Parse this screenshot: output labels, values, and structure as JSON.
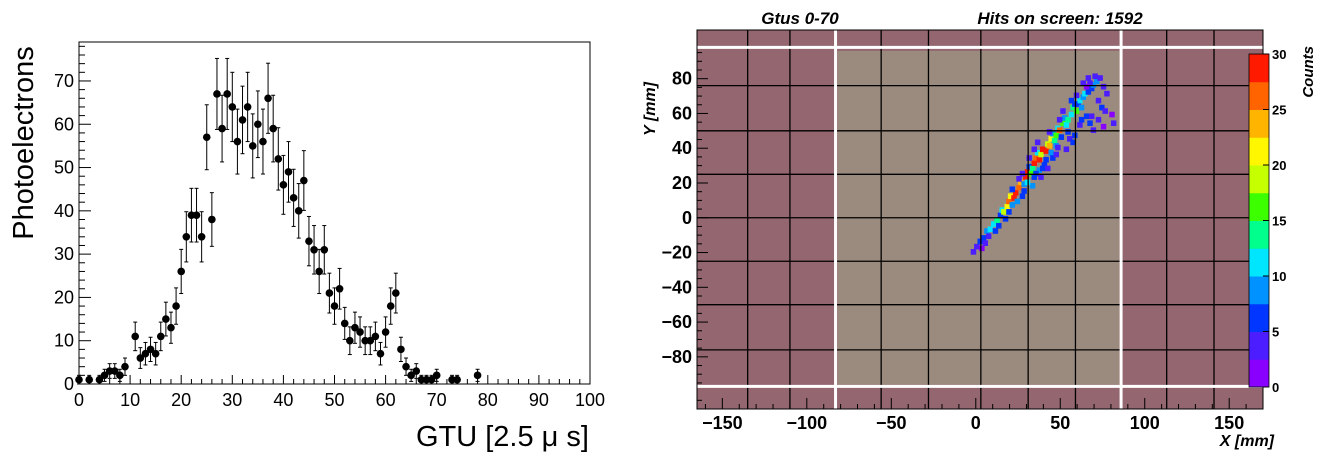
{
  "left_panel": {
    "chart_data": {
      "type": "scatter",
      "xlabel": "GTU [2.5 μ s]",
      "ylabel": "Photoelectrons",
      "xlim": [
        0,
        100
      ],
      "ylim": [
        0,
        79
      ],
      "xticks": [
        "0",
        "10",
        "20",
        "30",
        "40",
        "50",
        "60",
        "70",
        "80",
        "90",
        "100"
      ],
      "yticks": [
        "0",
        "10",
        "20",
        "30",
        "40",
        "50",
        "60",
        "70"
      ],
      "grid": false,
      "error_bars": true,
      "x": [
        0,
        2,
        4,
        5,
        6,
        7,
        8,
        9,
        11,
        12,
        13,
        14,
        15,
        16,
        17,
        18,
        19,
        20,
        21,
        22,
        23,
        24,
        25,
        26,
        27,
        28,
        29,
        30,
        31,
        32,
        33,
        34,
        35,
        36,
        37,
        38,
        39,
        40,
        41,
        42,
        43,
        44,
        45,
        46,
        47,
        48,
        49,
        50,
        51,
        52,
        53,
        54,
        55,
        56,
        57,
        58,
        59,
        60,
        61,
        62,
        63,
        64,
        65,
        66,
        67,
        68,
        69,
        70,
        73,
        74,
        78
      ],
      "y": [
        1,
        1,
        1,
        2,
        3,
        3,
        2,
        4,
        11,
        6,
        7,
        8,
        7,
        11,
        15,
        13,
        18,
        26,
        34,
        39,
        39,
        34,
        57,
        38,
        67,
        59,
        67,
        64,
        56,
        61,
        64,
        55,
        60,
        56,
        66,
        59,
        52,
        46,
        49,
        43,
        40,
        47,
        33,
        31,
        26,
        31,
        21,
        18,
        22,
        14,
        10,
        13,
        12,
        10,
        10,
        11,
        7,
        12,
        18,
        21,
        8,
        4,
        2,
        3,
        1,
        1,
        1,
        2,
        1,
        1,
        2
      ],
      "err": [
        1,
        1,
        1,
        1.4,
        1.7,
        1.7,
        1.4,
        2,
        3.3,
        2.4,
        2.6,
        2.8,
        2.6,
        3.3,
        3.9,
        3.6,
        4.2,
        5.1,
        5.8,
        6.2,
        6.2,
        5.8,
        7.5,
        6.2,
        8.2,
        7.7,
        8.2,
        8,
        7.5,
        7.8,
        8,
        7.4,
        7.7,
        7.5,
        8.1,
        7.7,
        7.2,
        6.8,
        7,
        6.6,
        6.3,
        6.9,
        5.7,
        5.6,
        5.1,
        5.6,
        4.6,
        4.2,
        4.7,
        3.7,
        3.2,
        3.6,
        3.5,
        3.2,
        3.2,
        3.3,
        2.6,
        3.5,
        4.2,
        4.6,
        2.8,
        2,
        1.4,
        1.7,
        1,
        1,
        1,
        1.4,
        1,
        1,
        1.4
      ]
    }
  },
  "right_panel": {
    "title_left": "Gtus 0-70",
    "title_right": "Hits on screen: 1592",
    "chart_data": {
      "type": "heatmap",
      "xlabel": "X [mm]",
      "ylabel": "Y [mm]",
      "zlabel": "Counts",
      "xlim": [
        -165,
        170
      ],
      "ylim": [
        -110,
        108
      ],
      "zlim": [
        0,
        30
      ],
      "xticks": [
        "−150",
        "−100",
        "−50",
        "0",
        "50",
        "100",
        "150"
      ],
      "yticks": [
        "−80",
        "−60",
        "−40",
        "−20",
        "0",
        "20",
        "40",
        "60",
        "80"
      ],
      "zticks": [
        "0",
        "5",
        "10",
        "15",
        "20",
        "25",
        "30"
      ],
      "colors": {
        "inactive_pmt": "#936670",
        "active_ec": "#9b8b7e",
        "palette": [
          "#8a00ff",
          "#4b1dff",
          "#0036ff",
          "#0093ff",
          "#00e6ff",
          "#00ff8c",
          "#3cff00",
          "#c6ff00",
          "#fff700",
          "#ffb400",
          "#ff6400",
          "#ff1a00"
        ]
      },
      "hits": [
        [
          -3,
          -21,
          3
        ],
        [
          -1,
          -18,
          4
        ],
        [
          1,
          -15,
          6
        ],
        [
          3,
          -13,
          5
        ],
        [
          5,
          -9,
          8
        ],
        [
          7,
          -8,
          12
        ],
        [
          9,
          -5,
          10
        ],
        [
          11,
          -3,
          14
        ],
        [
          13,
          0,
          7
        ],
        [
          14,
          3,
          11
        ],
        [
          15,
          2,
          18
        ],
        [
          17,
          5,
          22
        ],
        [
          18,
          8,
          26
        ],
        [
          19,
          11,
          20
        ],
        [
          21,
          10,
          28
        ],
        [
          22,
          13,
          30
        ],
        [
          24,
          16,
          27
        ],
        [
          25,
          19,
          24
        ],
        [
          27,
          18,
          9
        ],
        [
          28,
          22,
          30
        ],
        [
          29,
          25,
          29
        ],
        [
          31,
          24,
          16
        ],
        [
          30,
          28,
          7
        ],
        [
          32,
          27,
          13
        ],
        [
          33,
          30,
          30
        ],
        [
          34,
          33,
          25
        ],
        [
          36,
          32,
          28
        ],
        [
          35,
          36,
          11
        ],
        [
          37,
          35,
          19
        ],
        [
          38,
          38,
          30
        ],
        [
          40,
          37,
          29
        ],
        [
          41,
          41,
          18
        ],
        [
          42,
          40,
          24
        ],
        [
          43,
          44,
          21
        ],
        [
          45,
          43,
          13
        ],
        [
          44,
          47,
          8
        ],
        [
          46,
          46,
          15
        ],
        [
          47,
          50,
          12
        ],
        [
          48,
          49,
          26
        ],
        [
          50,
          53,
          17
        ],
        [
          52,
          52,
          11
        ],
        [
          51,
          56,
          9
        ],
        [
          53,
          55,
          14
        ],
        [
          55,
          58,
          10
        ],
        [
          56,
          62,
          13
        ],
        [
          58,
          60,
          16
        ],
        [
          59,
          64,
          6
        ],
        [
          61,
          62,
          9
        ],
        [
          60,
          66,
          12
        ],
        [
          62,
          68,
          8
        ],
        [
          63,
          70,
          10
        ],
        [
          65,
          71,
          7
        ],
        [
          67,
          73,
          5
        ],
        [
          68,
          75,
          9
        ],
        [
          70,
          77,
          8
        ],
        [
          72,
          79,
          4
        ],
        [
          69,
          80,
          3
        ],
        [
          66,
          76,
          4
        ],
        [
          74,
          74,
          3
        ],
        [
          76,
          70,
          4
        ],
        [
          64,
          74,
          2
        ],
        [
          71,
          66,
          3
        ],
        [
          73,
          62,
          5
        ],
        [
          75,
          60,
          3
        ],
        [
          79,
          58,
          2
        ],
        [
          80,
          53,
          3
        ],
        [
          74,
          51,
          2
        ],
        [
          71,
          55,
          4
        ],
        [
          68,
          49,
          3
        ],
        [
          66,
          53,
          5
        ],
        [
          64,
          57,
          6
        ],
        [
          60,
          52,
          4
        ],
        [
          57,
          46,
          7
        ],
        [
          54,
          44,
          3
        ],
        [
          56,
          42,
          5
        ],
        [
          52,
          38,
          4
        ],
        [
          49,
          45,
          6
        ],
        [
          46,
          40,
          8
        ],
        [
          43,
          36,
          9
        ],
        [
          44,
          33,
          5
        ],
        [
          40,
          32,
          6
        ],
        [
          39,
          29,
          7
        ],
        [
          36,
          26,
          8
        ],
        [
          33,
          22,
          6
        ],
        [
          32,
          17,
          9
        ],
        [
          29,
          19,
          11
        ],
        [
          27,
          14,
          5
        ],
        [
          26,
          11,
          7
        ],
        [
          23,
          8,
          9
        ],
        [
          20,
          6,
          8
        ],
        [
          18,
          2,
          6
        ],
        [
          16,
          -2,
          7
        ],
        [
          12,
          -6,
          5
        ],
        [
          10,
          -9,
          6
        ],
        [
          6,
          -12,
          4
        ],
        [
          4,
          -16,
          3
        ],
        [
          2,
          -19,
          2
        ],
        [
          58,
          69,
          3
        ],
        [
          62,
          76,
          4
        ],
        [
          65,
          79,
          3
        ],
        [
          50,
          60,
          3
        ],
        [
          48,
          55,
          4
        ],
        [
          38,
          27,
          5
        ],
        [
          34,
          24,
          7
        ],
        [
          42,
          48,
          3
        ],
        [
          46,
          35,
          4
        ],
        [
          30,
          33,
          3
        ],
        [
          26,
          24,
          4
        ],
        [
          20,
          15,
          5
        ],
        [
          35,
          42,
          3
        ],
        [
          53,
          48,
          6
        ],
        [
          61,
          55,
          5
        ],
        [
          57,
          64,
          7
        ],
        [
          47,
          39,
          3
        ],
        [
          41,
          27,
          4
        ],
        [
          37,
          22,
          3
        ],
        [
          24,
          21,
          3
        ],
        [
          33,
          38,
          4
        ],
        [
          55,
          66,
          5
        ],
        [
          67,
          57,
          4
        ]
      ]
    }
  }
}
